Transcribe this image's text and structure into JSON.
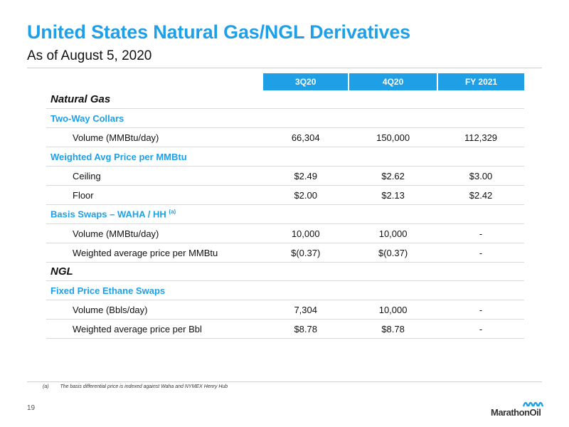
{
  "header": {
    "title": "United States Natural Gas/NGL Derivatives",
    "subtitle": "As of August 5, 2020"
  },
  "table": {
    "columns": [
      "3Q20",
      "4Q20",
      "FY 2021"
    ],
    "natural_gas": {
      "section_label": "Natural Gas",
      "two_way_collars": {
        "label": "Two-Way Collars",
        "volume": {
          "label": "Volume (MMBtu/day)",
          "values": [
            "66,304",
            "150,000",
            "112,329"
          ]
        }
      },
      "weighted_avg": {
        "label": "Weighted Avg Price per MMBtu",
        "ceiling": {
          "label": "Ceiling",
          "values": [
            "$2.49",
            "$2.62",
            "$3.00"
          ]
        },
        "floor": {
          "label": "Floor",
          "values": [
            "$2.00",
            "$2.13",
            "$2.42"
          ]
        }
      },
      "basis_swaps": {
        "label": "Basis Swaps – WAHA / HH",
        "footnote_ref": "(a)",
        "volume": {
          "label": "Volume (MMBtu/day)",
          "values": [
            "10,000",
            "10,000",
            "-"
          ]
        },
        "price": {
          "label": "Weighted average price per MMBtu",
          "values": [
            "$(0.37)",
            "$(0.37)",
            "-"
          ]
        }
      }
    },
    "ngl": {
      "section_label": "NGL",
      "ethane_swaps": {
        "label": "Fixed Price Ethane Swaps",
        "volume": {
          "label": "Volume (Bbls/day)",
          "values": [
            "7,304",
            "10,000",
            "-"
          ]
        },
        "price": {
          "label": "Weighted average price per Bbl",
          "values": [
            "$8.78",
            "$8.78",
            "-"
          ]
        }
      }
    }
  },
  "footnote": {
    "mark": "(a)",
    "text": "The basis differential price is indexed against Waha and NYMEX Henry Hub"
  },
  "page_number": "19",
  "logo": {
    "text_marathon": "Marathon",
    "text_oil": "Oil"
  },
  "colors": {
    "accent": "#1fa0e6"
  }
}
